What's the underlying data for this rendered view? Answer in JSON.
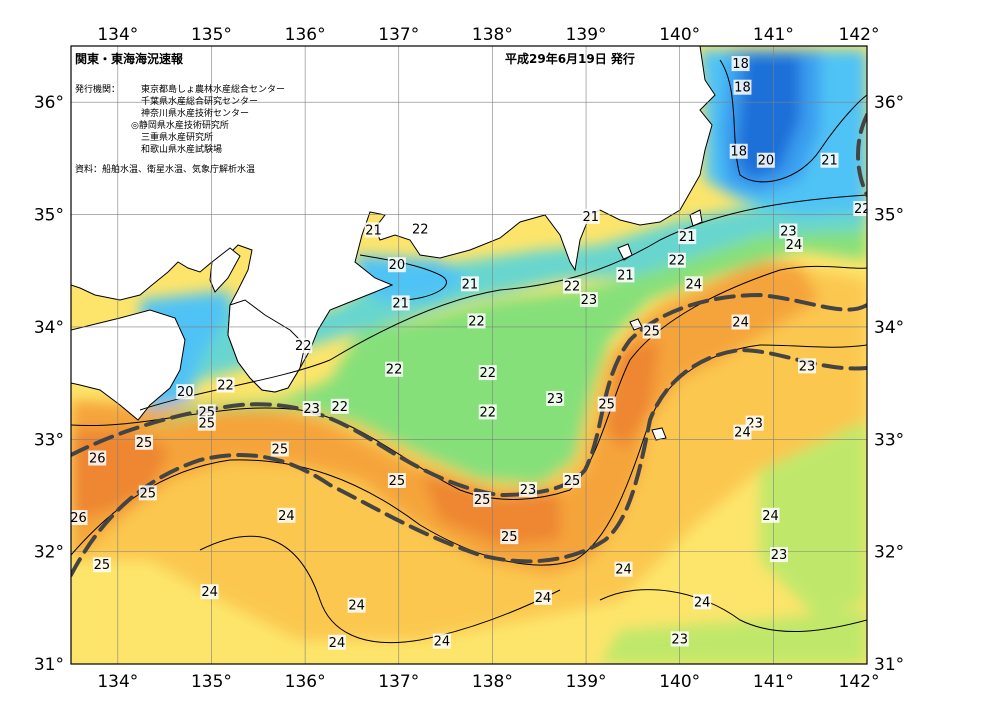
{
  "header": {
    "title": "関東・東海海況速報",
    "date": "平成29年6月19日 発行"
  },
  "issuers": {
    "label": "発行機関：",
    "items": [
      "東京都島しょ農林水産総合センター",
      "千葉県水産総合研究センター",
      "神奈川県水産技術センター",
      "◎静岡県水産技術研究所",
      "三重県水産研究所",
      "和歌山県水産試験場"
    ]
  },
  "sources": "資料：船舶水温、衛星水温、気象庁解析水温",
  "axes": {
    "lon_top": [
      "134°",
      "135°",
      "136°",
      "137°",
      "138°",
      "139°",
      "140°",
      "141°",
      "142°"
    ],
    "lon_bottom": [
      "134°",
      "135°",
      "136°",
      "137°",
      "138°",
      "139°",
      "140°",
      "141°",
      "142°"
    ],
    "lat_left": [
      "36°",
      "35°",
      "34°",
      "33°",
      "32°",
      "31°"
    ],
    "lat_right": [
      "36°",
      "35°",
      "34°",
      "33°",
      "32°",
      "31°"
    ]
  },
  "contour_labels": [
    {
      "text": "18",
      "lon": 140.65,
      "lat": 36.33
    },
    {
      "text": "18",
      "lon": 140.67,
      "lat": 36.12
    },
    {
      "text": "18",
      "lon": 140.63,
      "lat": 35.55
    },
    {
      "text": "20",
      "lon": 140.92,
      "lat": 35.47
    },
    {
      "text": "21",
      "lon": 141.6,
      "lat": 35.47
    },
    {
      "text": "22",
      "lon": 141.95,
      "lat": 35.04
    },
    {
      "text": "21",
      "lon": 139.05,
      "lat": 34.97
    },
    {
      "text": "21",
      "lon": 140.08,
      "lat": 34.79
    },
    {
      "text": "22",
      "lon": 139.97,
      "lat": 34.58
    },
    {
      "text": "23",
      "lon": 141.16,
      "lat": 34.84
    },
    {
      "text": "24",
      "lon": 141.22,
      "lat": 34.72
    },
    {
      "text": "21",
      "lon": 139.42,
      "lat": 34.45
    },
    {
      "text": "22",
      "lon": 138.85,
      "lat": 34.35
    },
    {
      "text": "23",
      "lon": 139.03,
      "lat": 34.23
    },
    {
      "text": "24",
      "lon": 140.15,
      "lat": 34.37
    },
    {
      "text": "25",
      "lon": 139.7,
      "lat": 33.95
    },
    {
      "text": "24",
      "lon": 140.65,
      "lat": 34.03
    },
    {
      "text": "23",
      "lon": 141.36,
      "lat": 33.64
    },
    {
      "text": "21",
      "lon": 136.73,
      "lat": 34.85
    },
    {
      "text": "22",
      "lon": 137.23,
      "lat": 34.86
    },
    {
      "text": "20",
      "lon": 136.98,
      "lat": 34.54
    },
    {
      "text": "21",
      "lon": 137.76,
      "lat": 34.37
    },
    {
      "text": "21",
      "lon": 137.02,
      "lat": 34.2
    },
    {
      "text": "22",
      "lon": 137.83,
      "lat": 34.04
    },
    {
      "text": "22",
      "lon": 135.98,
      "lat": 33.82
    },
    {
      "text": "22",
      "lon": 136.95,
      "lat": 33.61
    },
    {
      "text": "22",
      "lon": 137.95,
      "lat": 33.58
    },
    {
      "text": "23",
      "lon": 138.67,
      "lat": 33.35
    },
    {
      "text": "22",
      "lon": 137.95,
      "lat": 33.23
    },
    {
      "text": "25",
      "lon": 139.22,
      "lat": 33.3
    },
    {
      "text": "23",
      "lon": 140.8,
      "lat": 33.13
    },
    {
      "text": "24",
      "lon": 140.67,
      "lat": 33.05
    },
    {
      "text": "22",
      "lon": 135.15,
      "lat": 33.47
    },
    {
      "text": "20",
      "lon": 134.72,
      "lat": 33.41
    },
    {
      "text": "22",
      "lon": 136.37,
      "lat": 33.28
    },
    {
      "text": "23",
      "lon": 136.07,
      "lat": 33.26
    },
    {
      "text": "25",
      "lon": 134.95,
      "lat": 33.23
    },
    {
      "text": "25",
      "lon": 134.95,
      "lat": 33.13
    },
    {
      "text": "25",
      "lon": 134.28,
      "lat": 32.96
    },
    {
      "text": "25",
      "lon": 135.73,
      "lat": 32.9
    },
    {
      "text": "26",
      "lon": 133.78,
      "lat": 32.82
    },
    {
      "text": "25",
      "lon": 136.98,
      "lat": 32.62
    },
    {
      "text": "25",
      "lon": 138.85,
      "lat": 32.62
    },
    {
      "text": "23",
      "lon": 138.38,
      "lat": 32.54
    },
    {
      "text": "25",
      "lon": 137.89,
      "lat": 32.45
    },
    {
      "text": "25",
      "lon": 134.32,
      "lat": 32.51
    },
    {
      "text": "26",
      "lon": 133.58,
      "lat": 32.29
    },
    {
      "text": "24",
      "lon": 135.8,
      "lat": 32.31
    },
    {
      "text": "24",
      "lon": 140.97,
      "lat": 32.31
    },
    {
      "text": "25",
      "lon": 138.18,
      "lat": 32.12
    },
    {
      "text": "25",
      "lon": 133.83,
      "lat": 31.87
    },
    {
      "text": "23",
      "lon": 141.06,
      "lat": 31.96
    },
    {
      "text": "24",
      "lon": 139.4,
      "lat": 31.83
    },
    {
      "text": "24",
      "lon": 134.98,
      "lat": 31.63
    },
    {
      "text": "24",
      "lon": 138.54,
      "lat": 31.58
    },
    {
      "text": "24",
      "lon": 136.55,
      "lat": 31.51
    },
    {
      "text": "24",
      "lon": 140.24,
      "lat": 31.54
    },
    {
      "text": "24",
      "lon": 137.46,
      "lat": 31.19
    },
    {
      "text": "24",
      "lon": 136.34,
      "lat": 31.18
    },
    {
      "text": "23",
      "lon": 140.0,
      "lat": 31.21
    }
  ],
  "colors": {
    "t18": "#1c6fd8",
    "t19": "#3a9ef0",
    "t20": "#4fc3f5",
    "t21": "#68d6cf",
    "t22": "#86e07a",
    "t23": "#bfe86a",
    "t24": "#fde56b",
    "t24b": "#fbc74f",
    "t25": "#f5a43a",
    "t26": "#ee8630",
    "land": "#ffffff",
    "coast": "#000000",
    "current_axis": "#444444",
    "grid": "#808080"
  }
}
